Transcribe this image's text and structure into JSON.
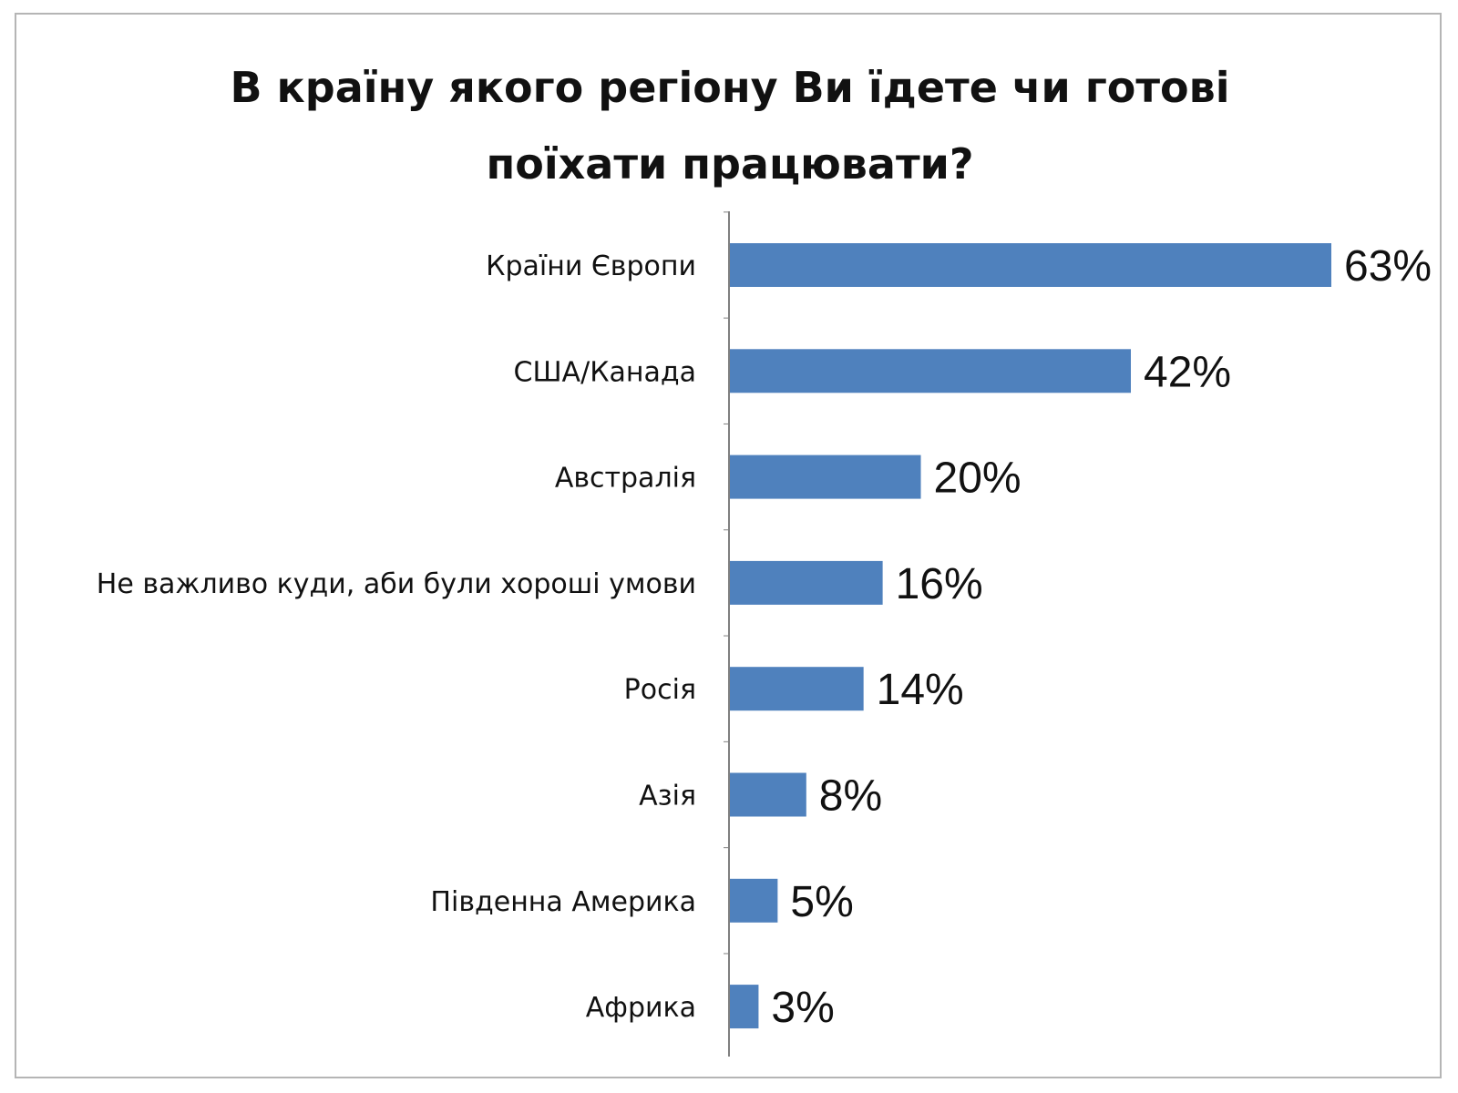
{
  "chart_data": {
    "type": "bar",
    "orientation": "horizontal",
    "title_lines": [
      "В країну якого регіону Ви їдете чи готові",
      "поїхати працювати?"
    ],
    "categories": [
      "Країни Європи",
      "США/Канада",
      "Австралія",
      "Не важливо куди, аби були хороші умови",
      "Росія",
      "Азія",
      "Південна Америка",
      "Африка"
    ],
    "values": [
      63,
      42,
      20,
      16,
      14,
      8,
      5,
      3
    ],
    "value_labels": [
      "63%",
      "42%",
      "20%",
      "16%",
      "14%",
      "8%",
      "5%",
      "3%"
    ],
    "xlim": [
      0,
      63
    ],
    "grid": false,
    "legend": "none",
    "bar_color": "#4f81bd",
    "axis_color": "#808080"
  }
}
